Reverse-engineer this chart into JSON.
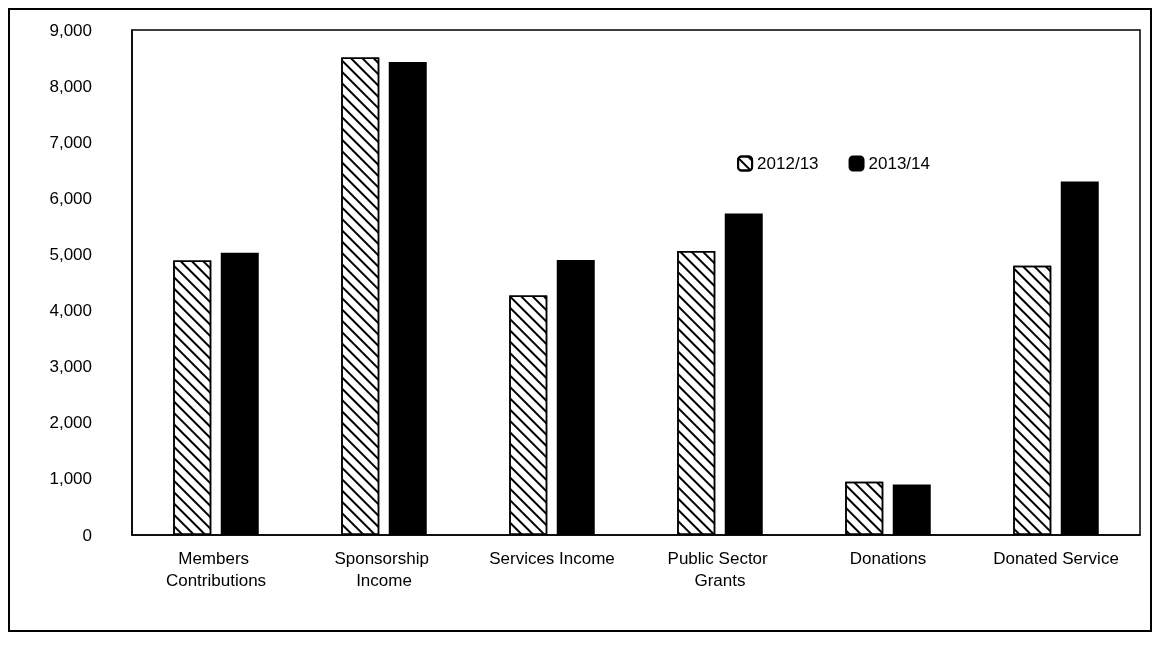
{
  "chart_data": {
    "type": "bar",
    "categories": [
      "Members Contributions",
      "Sponsorship Income",
      "Services Income",
      "Public Sector Grants",
      "Donations",
      "Donated Service"
    ],
    "series": [
      {
        "name": "2012/13",
        "color": "#ffffff",
        "values": [
          4890,
          8510,
          4270,
          5060,
          950,
          4800
        ]
      },
      {
        "name": "2013/14",
        "color": "#000000",
        "values": [
          5030,
          8430,
          4900,
          5730,
          900,
          6300
        ]
      }
    ],
    "ylim": [
      0,
      9000
    ],
    "yticks": [
      0,
      {
        "value": 1000,
        "label": "1,000"
      },
      {
        "value": 2000,
        "label": "2,000"
      },
      {
        "value": 3000,
        "label": "3,000"
      },
      {
        "value": 4000,
        "label": "4,000"
      },
      {
        "value": 5000,
        "label": "5,000"
      },
      {
        "value": 6000,
        "label": "6,000"
      },
      {
        "value": 7000,
        "label": "7,000"
      },
      {
        "value": 8000,
        "label": "8,000"
      },
      {
        "value": 9000,
        "label": "9,000"
      }
    ],
    "grid": false,
    "legend": "top right"
  }
}
